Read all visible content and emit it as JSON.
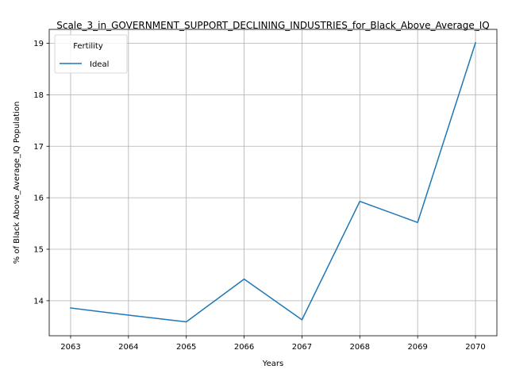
{
  "chart_data": {
    "type": "line",
    "title": "Scale_3_in_GOVERNMENT_SUPPORT_DECLINING_INDUSTRIES_for_Black_Above_Average_IQ",
    "xlabel": "Years",
    "ylabel": "% of Black Above_Average_IQ Population",
    "x": [
      2063,
      2064,
      2065,
      2066,
      2067,
      2068,
      2069,
      2070
    ],
    "x_ticks": [
      "2063",
      "2064",
      "2065",
      "2066",
      "2067",
      "2068",
      "2069",
      "2070"
    ],
    "y_ticks": [
      "14",
      "15",
      "16",
      "17",
      "18",
      "19"
    ],
    "xlim": [
      2062.63,
      2070.37
    ],
    "ylim": [
      13.32,
      19.27
    ],
    "grid": true,
    "legend": {
      "title": "Fertility",
      "placement": "top-left"
    },
    "series": [
      {
        "name": "Ideal",
        "color": "#1f77b4",
        "x": [
          2063,
          2064,
          2065,
          2066,
          2067,
          2068,
          2069,
          2070
        ],
        "values": [
          13.86,
          13.72,
          13.59,
          14.42,
          13.63,
          15.93,
          15.52,
          19.01
        ]
      }
    ]
  }
}
